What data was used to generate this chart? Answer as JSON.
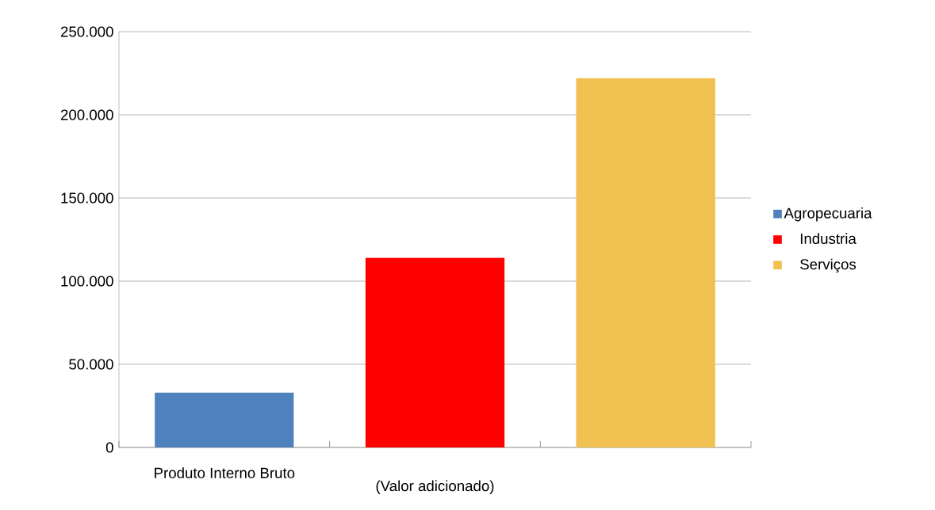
{
  "chart_data": {
    "type": "bar",
    "categories": [
      "Produto Interno Bruto",
      "(Valor adicionado)",
      null
    ],
    "series": [
      {
        "name": "Agropecuaria",
        "color": "#4f81bd",
        "values": [
          33000,
          null,
          null
        ]
      },
      {
        "name": "Industria",
        "color": "#ff0000",
        "values": [
          null,
          114000,
          null
        ]
      },
      {
        "name": "Serviços",
        "color": "#f0c050",
        "values": [
          null,
          null,
          222000
        ]
      }
    ],
    "ylim": [
      0,
      250000
    ],
    "yticks": [
      {
        "value": 0,
        "label": "0"
      },
      {
        "value": 50000,
        "label": "50.000"
      },
      {
        "value": 100000,
        "label": "100.000"
      },
      {
        "value": 150000,
        "label": "150.000"
      },
      {
        "value": 200000,
        "label": "200.000"
      },
      {
        "value": 250000,
        "label": "250.000"
      }
    ],
    "grid": "y",
    "legend": "right"
  }
}
